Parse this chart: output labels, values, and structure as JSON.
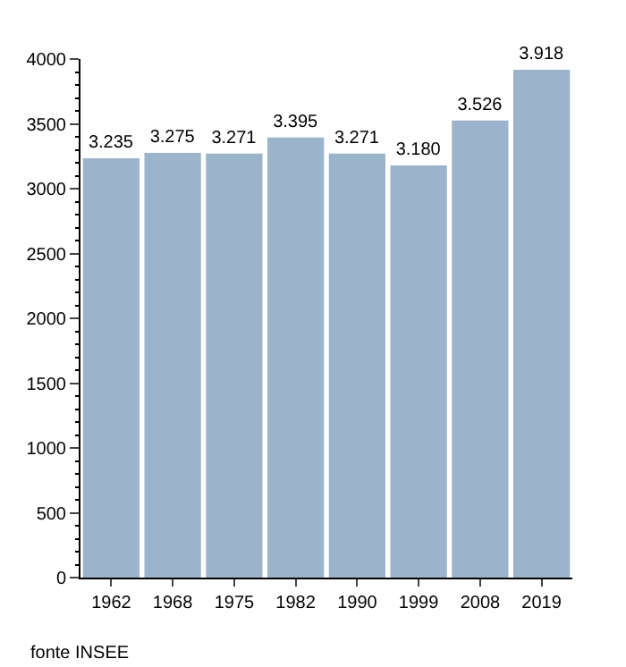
{
  "chart_data": {
    "type": "bar",
    "categories": [
      "1962",
      "1968",
      "1975",
      "1982",
      "1990",
      "1999",
      "2008",
      "2019"
    ],
    "values": [
      3235,
      3275,
      3271,
      3395,
      3271,
      3180,
      3526,
      3918
    ],
    "value_labels": [
      "3.235",
      "3.275",
      "3.271",
      "3.395",
      "3.271",
      "3.180",
      "3.526",
      "3.918"
    ],
    "color": "#9bb4cc",
    "ylim": [
      0,
      4000
    ],
    "yticks": [
      0,
      500,
      1000,
      1500,
      2000,
      2500,
      3000,
      3500,
      4000
    ],
    "grid": false,
    "legend": false,
    "annotations": [
      "fonte INSEE"
    ]
  }
}
